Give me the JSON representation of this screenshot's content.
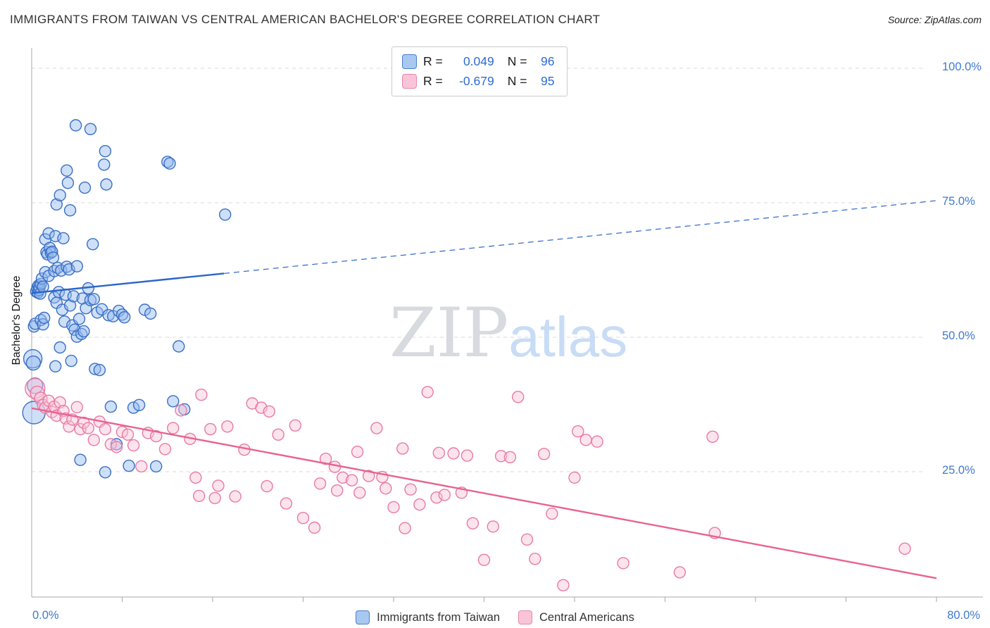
{
  "title": "IMMIGRANTS FROM TAIWAN VS CENTRAL AMERICAN BACHELOR'S DEGREE CORRELATION CHART",
  "source": "Source: ZipAtlas.com",
  "watermark": {
    "zip": "ZIP",
    "atlas": "atlas"
  },
  "y_axis": {
    "label": "Bachelor's Degree",
    "ticks": [
      {
        "value": 100,
        "label": "100.0%"
      },
      {
        "value": 75,
        "label": "75.0%"
      },
      {
        "value": 50,
        "label": "50.0%"
      },
      {
        "value": 25,
        "label": "25.0%"
      }
    ]
  },
  "x_axis": {
    "min_label": "0.0%",
    "max_label": "80.0%"
  },
  "stats": [
    {
      "r_label": "R =",
      "r_value": "0.049",
      "n_label": "N =",
      "n_value": "96"
    },
    {
      "r_label": "R =",
      "r_value": "-0.679",
      "n_label": "N =",
      "n_value": "95"
    }
  ],
  "legend": {
    "items": [
      {
        "label": "Immigrants from Taiwan",
        "fill": "#a8c8f0",
        "border": "#4a80cc"
      },
      {
        "label": "Central Americans",
        "fill": "#f9c4d8",
        "border": "#e887ab"
      }
    ]
  },
  "chart_data": {
    "type": "scatter",
    "title": "Immigrants from Taiwan vs Central American Bachelor's Degree Correlation Chart",
    "xlabel": "",
    "ylabel": "Bachelor's Degree",
    "xlim": [
      0,
      80
    ],
    "ylim": [
      0,
      100
    ],
    "grid": "horizontal dashed at 25/50/75/100",
    "legend_position": "bottom",
    "series": [
      {
        "name": "Immigrants from Taiwan",
        "color": "#3a6fc4",
        "fill": "#93b8ef",
        "trend_color": "#2a66cc",
        "R": 0.049,
        "N": 96,
        "trend": {
          "x0": 0,
          "y0": 58.2,
          "x1": 80,
          "y1": 75.4,
          "solid_until": 17
        },
        "points": [
          [
            0.1,
            46,
            13
          ],
          [
            0.15,
            45.2,
            10
          ],
          [
            0.2,
            36,
            16
          ],
          [
            0.3,
            41,
            11
          ],
          [
            0.2,
            52
          ],
          [
            0.3,
            52.5
          ],
          [
            0.4,
            58.5
          ],
          [
            0.5,
            59.2
          ],
          [
            0.55,
            58.3
          ],
          [
            0.6,
            59.6
          ],
          [
            0.65,
            58.8
          ],
          [
            0.7,
            59.3
          ],
          [
            0.75,
            58.1
          ],
          [
            0.8,
            59.9
          ],
          [
            0.8,
            53.2
          ],
          [
            0.9,
            60.9
          ],
          [
            1,
            59.4
          ],
          [
            1,
            52.4
          ],
          [
            1.1,
            53.6
          ],
          [
            1.2,
            68.2
          ],
          [
            1.2,
            62.1
          ],
          [
            1.3,
            65.8
          ],
          [
            1.4,
            65.4
          ],
          [
            1.5,
            69.3
          ],
          [
            1.5,
            61.4
          ],
          [
            1.6,
            66.6
          ],
          [
            1.7,
            65.7
          ],
          [
            1.8,
            65.9
          ],
          [
            1.9,
            64.8
          ],
          [
            2,
            62.3
          ],
          [
            2,
            57.4
          ],
          [
            2.1,
            68.8
          ],
          [
            2.1,
            44.6
          ],
          [
            2.2,
            74.7
          ],
          [
            2.2,
            56.4
          ],
          [
            2.3,
            62.9
          ],
          [
            2.4,
            58.4
          ],
          [
            2.5,
            76.4
          ],
          [
            2.5,
            48.1
          ],
          [
            2.6,
            62.4
          ],
          [
            2.7,
            55.1
          ],
          [
            2.8,
            68.4
          ],
          [
            2.9,
            52.9
          ],
          [
            3,
            57.9
          ],
          [
            3.1,
            81
          ],
          [
            3.1,
            63.1
          ],
          [
            3.2,
            78.7
          ],
          [
            3.3,
            62.6
          ],
          [
            3.4,
            73.6
          ],
          [
            3.4,
            55.9
          ],
          [
            3.5,
            45.6
          ],
          [
            3.6,
            52.2
          ],
          [
            3.7,
            57.6
          ],
          [
            3.8,
            51.4
          ],
          [
            3.9,
            89.4
          ],
          [
            4,
            63.2
          ],
          [
            4,
            50.1
          ],
          [
            4.2,
            53.4
          ],
          [
            4.3,
            27.2
          ],
          [
            4.4,
            50.6
          ],
          [
            4.5,
            57.2
          ],
          [
            4.6,
            51.1
          ],
          [
            4.7,
            77.8
          ],
          [
            4.8,
            55.4
          ],
          [
            5,
            59.1
          ],
          [
            5.2,
            88.7
          ],
          [
            5.2,
            56.9
          ],
          [
            5.4,
            67.3
          ],
          [
            5.5,
            57.1
          ],
          [
            5.6,
            44.1
          ],
          [
            5.8,
            54.6
          ],
          [
            6,
            43.9
          ],
          [
            6.2,
            55.2
          ],
          [
            6.4,
            82.1
          ],
          [
            6.5,
            84.6
          ],
          [
            6.6,
            78.4
          ],
          [
            6.5,
            24.9
          ],
          [
            6.8,
            54.1
          ],
          [
            7,
            37.1
          ],
          [
            7.2,
            53.9
          ],
          [
            7.5,
            30.1
          ],
          [
            7.7,
            54.9
          ],
          [
            8,
            54.2
          ],
          [
            8.2,
            53.7
          ],
          [
            8.6,
            26.1
          ],
          [
            9,
            36.9
          ],
          [
            9.5,
            37.4
          ],
          [
            10,
            55.1
          ],
          [
            10.5,
            54.4
          ],
          [
            11,
            26
          ],
          [
            12,
            82.6
          ],
          [
            12.2,
            82.3
          ],
          [
            12.5,
            38.1
          ],
          [
            13,
            48.3
          ],
          [
            13.5,
            36.6
          ],
          [
            17.1,
            72.8
          ]
        ]
      },
      {
        "name": "Central Americans",
        "color": "#e87aa4",
        "fill": "#f8c4d8",
        "trend_color": "#e8638f",
        "R": -0.679,
        "N": 95,
        "trend": {
          "x0": 0,
          "y0": 36.8,
          "x1": 80,
          "y1": 5.2,
          "solid_until": 80
        },
        "points": [
          [
            0.3,
            40.5,
            14
          ],
          [
            0.5,
            39.6,
            10
          ],
          [
            0.8,
            38.6,
            9
          ],
          [
            1,
            37.4
          ],
          [
            1.2,
            36.9
          ],
          [
            1.5,
            38.2
          ],
          [
            1.8,
            36.1
          ],
          [
            2,
            37.1
          ],
          [
            2.2,
            35.4
          ],
          [
            2.5,
            37.9
          ],
          [
            2.8,
            36.3
          ],
          [
            3,
            34.9
          ],
          [
            3.3,
            33.4
          ],
          [
            3.6,
            34.7
          ],
          [
            4,
            37
          ],
          [
            4.3,
            32.9
          ],
          [
            4.6,
            34.1
          ],
          [
            5,
            33.1
          ],
          [
            5.5,
            30.9
          ],
          [
            6,
            34.3
          ],
          [
            6.5,
            32.9
          ],
          [
            7,
            30.1
          ],
          [
            7.5,
            29.6
          ],
          [
            8,
            32.4
          ],
          [
            8.5,
            31.9
          ],
          [
            9,
            29.9
          ],
          [
            9.7,
            26
          ],
          [
            10.3,
            32.2
          ],
          [
            11,
            31.6
          ],
          [
            11.8,
            29.2
          ],
          [
            12.5,
            33.1
          ],
          [
            13.2,
            36.4
          ],
          [
            14,
            31.1
          ],
          [
            14.5,
            23.9
          ],
          [
            14.8,
            20.5
          ],
          [
            15,
            39.3
          ],
          [
            15.8,
            32.9
          ],
          [
            16.2,
            20.1
          ],
          [
            16.5,
            22.4
          ],
          [
            17.3,
            33.4
          ],
          [
            18,
            20.4
          ],
          [
            18.8,
            29.1
          ],
          [
            19.5,
            37.7
          ],
          [
            20.3,
            36.9
          ],
          [
            20.8,
            22.3
          ],
          [
            21,
            36.2
          ],
          [
            21.8,
            31.9
          ],
          [
            22.5,
            19.1
          ],
          [
            23.3,
            33.6
          ],
          [
            24,
            16.4
          ],
          [
            25,
            14.6
          ],
          [
            25.5,
            22.8
          ],
          [
            26,
            27.4
          ],
          [
            26.8,
            25.9
          ],
          [
            27,
            21.5
          ],
          [
            27.5,
            23.9
          ],
          [
            28.3,
            23.4
          ],
          [
            28.8,
            28.7
          ],
          [
            29,
            21.1
          ],
          [
            29.8,
            24.2
          ],
          [
            30.5,
            33.1
          ],
          [
            31,
            24
          ],
          [
            31.3,
            21.9
          ],
          [
            32,
            18.4
          ],
          [
            32.8,
            29.3
          ],
          [
            33,
            14.5
          ],
          [
            33.5,
            21.7
          ],
          [
            34.3,
            18.9
          ],
          [
            35,
            39.8
          ],
          [
            35.8,
            20.2
          ],
          [
            36,
            28.5
          ],
          [
            36.5,
            20.7
          ],
          [
            37.3,
            28.4
          ],
          [
            38,
            21.1
          ],
          [
            38.5,
            28
          ],
          [
            39,
            15.4
          ],
          [
            40,
            8.6
          ],
          [
            40.8,
            14.8
          ],
          [
            41.5,
            27.9
          ],
          [
            42.3,
            27.7
          ],
          [
            43,
            38.9
          ],
          [
            43.8,
            12.4
          ],
          [
            44.5,
            8.8
          ],
          [
            45.3,
            28.3
          ],
          [
            46,
            17.2
          ],
          [
            47,
            3.9
          ],
          [
            48,
            23.9
          ],
          [
            48.3,
            32.5
          ],
          [
            49,
            30.9
          ],
          [
            50,
            30.6
          ],
          [
            52.3,
            8
          ],
          [
            57.3,
            6.3
          ],
          [
            60.2,
            31.5
          ],
          [
            60.4,
            13.6
          ],
          [
            77.2,
            10.7
          ]
        ]
      }
    ]
  }
}
